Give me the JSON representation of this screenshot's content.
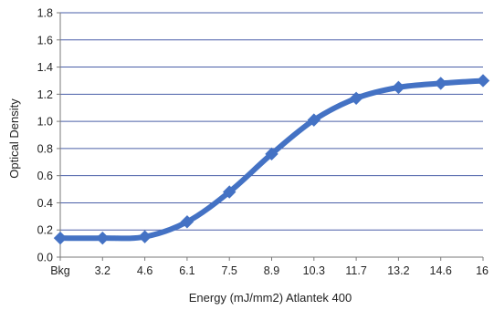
{
  "chart_data": {
    "type": "line",
    "title": "",
    "xlabel": "Energy (mJ/mm2) Atlantek 400",
    "ylabel": "Optical Density",
    "categories": [
      "Bkg",
      "3.2",
      "4.6",
      "6.1",
      "7.5",
      "8.9",
      "10.3",
      "11.7",
      "13.2",
      "14.6",
      "16"
    ],
    "series": [
      {
        "values": [
          0.14,
          0.14,
          0.15,
          0.26,
          0.48,
          0.76,
          1.01,
          1.17,
          1.25,
          1.28,
          1.3
        ]
      }
    ],
    "ylim": [
      0,
      1.8
    ],
    "yticks": [
      "0.0",
      "0.2",
      "0.4",
      "0.6",
      "0.8",
      "1.0",
      "1.2",
      "1.4",
      "1.6",
      "1.8"
    ],
    "grid": true,
    "line_color": "#4472C4",
    "grid_color": "#4a5fa8"
  }
}
